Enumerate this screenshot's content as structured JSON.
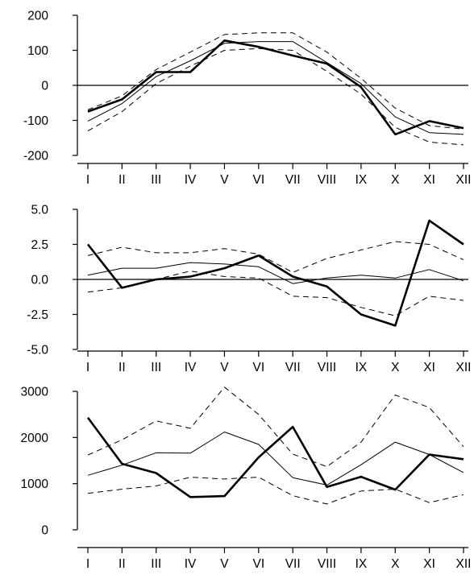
{
  "chart_data": [
    {
      "type": "line",
      "categories": [
        "I",
        "II",
        "III",
        "IV",
        "V",
        "VI",
        "VII",
        "VIII",
        "IX",
        "X",
        "XI",
        "XII"
      ],
      "ylim": [
        -200,
        200
      ],
      "yticks": [
        -200,
        -100,
        0,
        100,
        200
      ],
      "ytick_labels": [
        "-200",
        "-100",
        "0",
        "100",
        "200"
      ],
      "zero_line": true,
      "series": [
        {
          "style": "bold",
          "values": [
            -75,
            -40,
            38,
            38,
            128,
            110,
            85,
            62,
            -5,
            -140,
            -102,
            -122
          ]
        },
        {
          "style": "thin",
          "values": [
            -102,
            -52,
            25,
            70,
            120,
            125,
            125,
            65,
            5,
            -90,
            -135,
            -140
          ]
        },
        {
          "style": "dashed",
          "values": [
            -70,
            -30,
            45,
            95,
            145,
            150,
            150,
            95,
            20,
            -65,
            -115,
            -125
          ]
        },
        {
          "style": "dashed",
          "values": [
            -130,
            -75,
            5,
            55,
            100,
            105,
            100,
            40,
            -25,
            -120,
            -162,
            -170
          ]
        }
      ]
    },
    {
      "type": "line",
      "categories": [
        "I",
        "II",
        "III",
        "IV",
        "V",
        "VI",
        "VII",
        "VIII",
        "IX",
        "X",
        "XI",
        "XII"
      ],
      "ylim": [
        -5,
        5
      ],
      "yticks": [
        -5,
        -2.5,
        0,
        2.5,
        5
      ],
      "ytick_labels": [
        "-5.0",
        "-2.5",
        "0.0",
        "2.5",
        "5.0"
      ],
      "zero_line": true,
      "series": [
        {
          "style": "bold",
          "values": [
            2.5,
            -0.6,
            0.0,
            0.2,
            0.8,
            1.7,
            0.2,
            -0.5,
            -2.5,
            -3.3,
            4.2,
            2.5
          ]
        },
        {
          "style": "thin",
          "values": [
            0.3,
            0.8,
            0.8,
            1.2,
            1.1,
            0.9,
            -0.3,
            0.1,
            0.3,
            0.1,
            0.7,
            -0.1
          ]
        },
        {
          "style": "dashed",
          "values": [
            1.7,
            2.3,
            1.9,
            1.9,
            2.2,
            1.8,
            0.5,
            1.5,
            2.1,
            2.7,
            2.5,
            1.4
          ]
        },
        {
          "style": "dashed",
          "values": [
            -0.9,
            -0.6,
            0.0,
            0.6,
            0.2,
            0.1,
            -1.2,
            -1.3,
            -2.0,
            -2.6,
            -1.2,
            -1.5
          ]
        }
      ]
    },
    {
      "type": "line",
      "categories": [
        "I",
        "II",
        "III",
        "IV",
        "V",
        "VI",
        "VII",
        "VIII",
        "IX",
        "X",
        "XI",
        "XII"
      ],
      "ylim": [
        0,
        3000
      ],
      "yticks": [
        0,
        1000,
        2000,
        3000
      ],
      "ytick_labels": [
        "0",
        "1000",
        "2000",
        "3000"
      ],
      "zero_line": false,
      "series": [
        {
          "style": "bold",
          "values": [
            2430,
            1430,
            1230,
            710,
            730,
            1570,
            2230,
            930,
            1150,
            870,
            1630,
            1530
          ]
        },
        {
          "style": "thin",
          "values": [
            1180,
            1400,
            1670,
            1660,
            2120,
            1850,
            1130,
            970,
            1410,
            1900,
            1630,
            1240
          ]
        },
        {
          "style": "dashed",
          "values": [
            1620,
            1950,
            2360,
            2200,
            3090,
            2500,
            1640,
            1370,
            1900,
            2920,
            2650,
            1800
          ]
        },
        {
          "style": "dashed",
          "values": [
            790,
            880,
            950,
            1140,
            1100,
            1140,
            740,
            560,
            840,
            880,
            590,
            760
          ]
        }
      ]
    }
  ]
}
